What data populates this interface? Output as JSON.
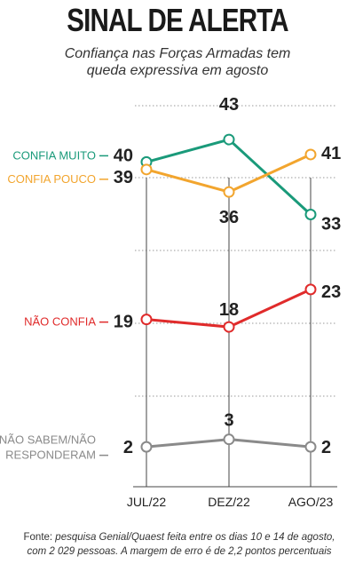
{
  "header": {
    "title": "SINAL DE ALERTA",
    "subtitle_line1": "Confiança nas Forças Armadas tem",
    "subtitle_line2": "queda expressiva em agosto"
  },
  "footer": {
    "source_lead": "Fonte:",
    "source_line1": " pesquisa Genial/Quaest feita entre os dias 10 e 14 de agosto,",
    "source_line2": "com 2 029 pessoas. A margem de erro é de 2,2 pontos percentuais"
  },
  "chart_data": {
    "type": "line",
    "categories": [
      "JUL/22",
      "DEZ/22",
      "AGO/23"
    ],
    "ylim": [
      0,
      50
    ],
    "grid": true,
    "series": [
      {
        "name": "CONFIA MUITO",
        "values": [
          40,
          43,
          33
        ],
        "color": "#1a9a7a",
        "label_lines": [
          "CONFIA MUITO"
        ]
      },
      {
        "name": "CONFIA POUCO",
        "values": [
          39,
          36,
          41
        ],
        "color": "#f2a52e",
        "label_lines": [
          "CONFIA POUCO"
        ]
      },
      {
        "name": "NÃO CONFIA",
        "values": [
          19,
          18,
          23
        ],
        "color": "#e02b2b",
        "label_lines": [
          "NÃO CONFIA"
        ]
      },
      {
        "name": "NÃO SABEM/NÃO RESPONDERAM",
        "values": [
          2,
          3,
          2
        ],
        "color": "#8a8a8a",
        "label_lines": [
          "NÃO SABEM/NÃO",
          "RESPONDERAM"
        ]
      }
    ],
    "value_labels": {
      "left": [
        "40",
        "39",
        "19",
        "2"
      ],
      "middle": [
        "43",
        "36",
        "18",
        "3"
      ],
      "right": [
        "33",
        "41",
        "23",
        "2"
      ]
    }
  }
}
